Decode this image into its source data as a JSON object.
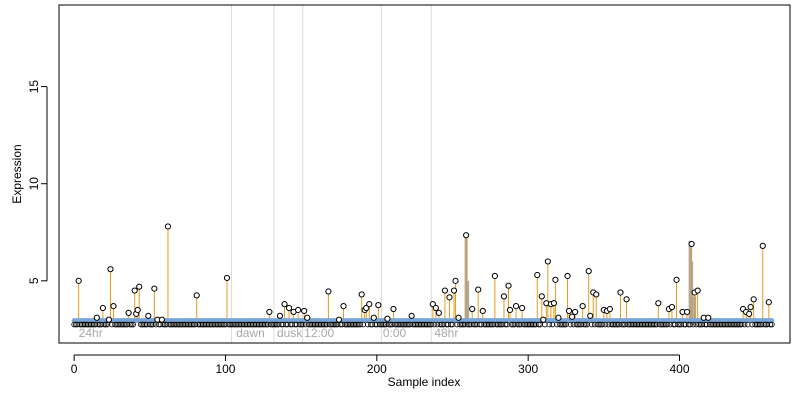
{
  "chart_data": {
    "type": "scatter",
    "title": "",
    "xlabel": "Sample index",
    "ylabel": "Expression",
    "xlim": [
      -10,
      473
    ],
    "ylim": [
      1.8,
      19.2
    ],
    "x_ticks": [
      0,
      100,
      200,
      300,
      400
    ],
    "y_ticks": [
      5,
      10,
      15
    ],
    "grid": false,
    "legend": "none",
    "baseline": 2.75,
    "threshold": 2.95,
    "colors": {
      "stem": "#e69a1c",
      "gray_stem": "#a9a9a9",
      "baseline_points": "#7aa6d8",
      "point_stroke": "#000000",
      "separator": "#dcdcdc",
      "region_text": "#a8a8a8"
    },
    "separators": [
      104,
      132,
      151,
      203,
      236
    ],
    "region_labels": [
      {
        "x": 3,
        "text": "24hr"
      },
      {
        "x": 107,
        "text": "dawn"
      },
      {
        "x": 134,
        "text": "dusk"
      },
      {
        "x": 152,
        "text": "12:00"
      },
      {
        "x": 204,
        "text": "0:00"
      },
      {
        "x": 238,
        "text": "48hr"
      }
    ],
    "highlighted_points": [
      {
        "x": 3,
        "y": 5.0
      },
      {
        "x": 15,
        "y": 3.1
      },
      {
        "x": 19,
        "y": 3.6
      },
      {
        "x": 23,
        "y": 3.0
      },
      {
        "x": 24,
        "y": 5.6
      },
      {
        "x": 26,
        "y": 3.7
      },
      {
        "x": 36,
        "y": 3.35
      },
      {
        "x": 40,
        "y": 4.5
      },
      {
        "x": 41,
        "y": 3.3
      },
      {
        "x": 42,
        "y": 3.5
      },
      {
        "x": 43,
        "y": 4.7
      },
      {
        "x": 49,
        "y": 3.2
      },
      {
        "x": 53,
        "y": 4.6
      },
      {
        "x": 55,
        "y": 3.0
      },
      {
        "x": 58,
        "y": 3.0
      },
      {
        "x": 62,
        "y": 7.8
      },
      {
        "x": 81,
        "y": 4.25
      },
      {
        "x": 101,
        "y": 5.15
      },
      {
        "x": 129,
        "y": 3.4
      },
      {
        "x": 136,
        "y": 3.2
      },
      {
        "x": 139,
        "y": 3.8
      },
      {
        "x": 142,
        "y": 3.6
      },
      {
        "x": 145,
        "y": 3.4
      },
      {
        "x": 148,
        "y": 3.5
      },
      {
        "x": 152,
        "y": 3.45
      },
      {
        "x": 154,
        "y": 3.1
      },
      {
        "x": 168,
        "y": 4.45
      },
      {
        "x": 175,
        "y": 3.0
      },
      {
        "x": 178,
        "y": 3.7
      },
      {
        "x": 190,
        "y": 4.3
      },
      {
        "x": 192,
        "y": 3.5
      },
      {
        "x": 193,
        "y": 3.6
      },
      {
        "x": 195,
        "y": 3.8
      },
      {
        "x": 198,
        "y": 3.1
      },
      {
        "x": 201,
        "y": 3.75
      },
      {
        "x": 207,
        "y": 3.05
      },
      {
        "x": 211,
        "y": 3.55
      },
      {
        "x": 223,
        "y": 3.2
      },
      {
        "x": 237,
        "y": 3.8
      },
      {
        "x": 239,
        "y": 3.6
      },
      {
        "x": 241,
        "y": 3.35
      },
      {
        "x": 245,
        "y": 4.5
      },
      {
        "x": 248,
        "y": 4.15
      },
      {
        "x": 251,
        "y": 4.5
      },
      {
        "x": 252,
        "y": 5.0
      },
      {
        "x": 254,
        "y": 3.1
      },
      {
        "x": 259,
        "y": 7.35
      },
      {
        "x": 263,
        "y": 3.55
      },
      {
        "x": 267,
        "y": 4.55
      },
      {
        "x": 270,
        "y": 3.45
      },
      {
        "x": 278,
        "y": 5.25
      },
      {
        "x": 284,
        "y": 4.2
      },
      {
        "x": 287,
        "y": 4.75
      },
      {
        "x": 288,
        "y": 3.5
      },
      {
        "x": 292,
        "y": 3.7
      },
      {
        "x": 296,
        "y": 3.6
      },
      {
        "x": 306,
        "y": 5.3
      },
      {
        "x": 309,
        "y": 4.2
      },
      {
        "x": 310,
        "y": 3.0
      },
      {
        "x": 312,
        "y": 3.85
      },
      {
        "x": 313,
        "y": 6.0
      },
      {
        "x": 315,
        "y": 3.8
      },
      {
        "x": 317,
        "y": 3.85
      },
      {
        "x": 318,
        "y": 5.05
      },
      {
        "x": 320,
        "y": 3.1
      },
      {
        "x": 326,
        "y": 5.25
      },
      {
        "x": 327,
        "y": 3.45
      },
      {
        "x": 329,
        "y": 3.15
      },
      {
        "x": 331,
        "y": 3.4
      },
      {
        "x": 336,
        "y": 3.7
      },
      {
        "x": 340,
        "y": 5.5
      },
      {
        "x": 341,
        "y": 3.2
      },
      {
        "x": 343,
        "y": 4.4
      },
      {
        "x": 345,
        "y": 4.3
      },
      {
        "x": 350,
        "y": 3.5
      },
      {
        "x": 352,
        "y": 3.45
      },
      {
        "x": 354,
        "y": 3.55
      },
      {
        "x": 361,
        "y": 4.4
      },
      {
        "x": 365,
        "y": 4.05
      },
      {
        "x": 386,
        "y": 3.85
      },
      {
        "x": 393,
        "y": 3.55
      },
      {
        "x": 395,
        "y": 3.65
      },
      {
        "x": 398,
        "y": 5.05
      },
      {
        "x": 402,
        "y": 3.4
      },
      {
        "x": 405,
        "y": 3.4
      },
      {
        "x": 408,
        "y": 6.9
      },
      {
        "x": 410,
        "y": 4.4
      },
      {
        "x": 412,
        "y": 4.5
      },
      {
        "x": 416,
        "y": 3.1
      },
      {
        "x": 419,
        "y": 3.1
      },
      {
        "x": 442,
        "y": 3.55
      },
      {
        "x": 444,
        "y": 3.4
      },
      {
        "x": 446,
        "y": 3.3
      },
      {
        "x": 447,
        "y": 3.65
      },
      {
        "x": 449,
        "y": 4.05
      },
      {
        "x": 455,
        "y": 6.8
      },
      {
        "x": 459,
        "y": 3.9
      }
    ],
    "gray_stems": [
      {
        "x": 259,
        "y": 7.3
      },
      {
        "x": 260,
        "y": 5.0
      },
      {
        "x": 407,
        "y": 7.05
      },
      {
        "x": 408,
        "y": 6.0
      },
      {
        "x": 410,
        "y": 4.2
      }
    ],
    "baseline_range": [
      0,
      461
    ]
  }
}
